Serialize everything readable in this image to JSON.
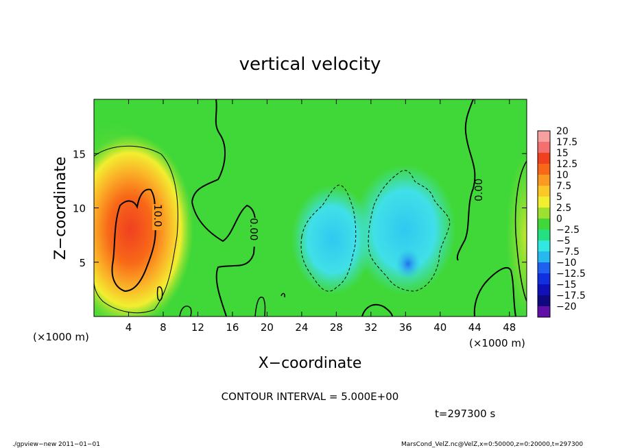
{
  "chart_data": {
    "type": "heatmap",
    "title": "vertical velocity",
    "xlabel": "X−coordinate",
    "ylabel": "Z−coordinate",
    "x_unit": "(×1000 m)",
    "xlim": [
      0,
      50
    ],
    "ylim": [
      0,
      20
    ],
    "x_ticks": [
      "4",
      "8",
      "12",
      "16",
      "20",
      "24",
      "28",
      "32",
      "36",
      "40",
      "44",
      "48"
    ],
    "y_ticks": [
      "5",
      "10",
      "15"
    ],
    "x_tick_values": [
      4,
      8,
      12,
      16,
      20,
      24,
      28,
      32,
      36,
      40,
      44,
      48
    ],
    "y_tick_values": [
      5,
      10,
      15
    ],
    "colorbar": {
      "labels": [
        "20",
        "17.5",
        "15",
        "12.5",
        "10",
        "7.5",
        "5",
        "2.5",
        "0",
        "−2.5",
        "−5",
        "−7.5",
        "−10",
        "−12.5",
        "−15",
        "−17.5",
        "−20"
      ],
      "colors": [
        "#f7a0a0",
        "#f47070",
        "#f04020",
        "#f86818",
        "#fa9a20",
        "#fbc828",
        "#f2ee30",
        "#9ee030",
        "#40d838",
        "#24e080",
        "#30e8e0",
        "#28b8f0",
        "#2060f0",
        "#1030e0",
        "#1010b8",
        "#100880",
        "#6010a8"
      ]
    },
    "contour_labels": [
      "10.0",
      "0.00",
      "0.00"
    ],
    "contour_interval": "CONTOUR INTERVAL = 5.000E+00",
    "time_label": "t=297300 s",
    "features": [
      {
        "kind": "updraft",
        "x_center": 4.0,
        "z_center": 7.0,
        "peak": 12.5
      },
      {
        "kind": "downdraft",
        "x_center": 29.0,
        "z_center": 7.5,
        "peak": -7.5
      },
      {
        "kind": "downdraft",
        "x_center": 36.0,
        "z_center": 6.5,
        "peak": -10
      }
    ]
  },
  "footer": {
    "left": "./gpview−new   2011−01−01",
    "right": "MarsCond_VelZ.nc@VelZ,x=0:50000,z=0:20000,t=297300"
  }
}
